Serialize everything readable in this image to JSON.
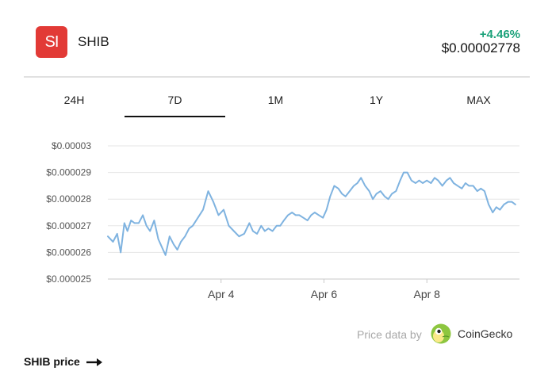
{
  "coin": {
    "logo_text": "SI",
    "name": "SHIB",
    "change": "+4.46%",
    "price": "$0.00002778",
    "colors": {
      "logo_bg": "#e23a36",
      "change": "#1aa179",
      "line": "#7fb3e0"
    }
  },
  "tabs": [
    {
      "label": "24H",
      "active": false
    },
    {
      "label": "7D",
      "active": true
    },
    {
      "label": "1M",
      "active": false
    },
    {
      "label": "1Y",
      "active": false
    },
    {
      "label": "MAX",
      "active": false
    }
  ],
  "chart_data": {
    "type": "line",
    "title": "",
    "xlabel": "",
    "ylabel": "",
    "ytick_labels": [
      "$0.000025",
      "$0.000026",
      "$0.000027",
      "$0.000028",
      "$0.000029",
      "$0.00003"
    ],
    "yticks": [
      2.5e-05,
      2.6e-05,
      2.7e-05,
      2.8e-05,
      2.9e-05,
      3e-05
    ],
    "ylim": [
      2.5e-05,
      3e-05
    ],
    "xtick_labels": [
      "Apr 4",
      "Apr 6",
      "Apr 8"
    ],
    "xticks": [
      1,
      3,
      5
    ],
    "xlim": [
      -1.2,
      6.8
    ],
    "grid": true,
    "series": [
      {
        "x": [
          -1.2,
          -1.1,
          -1.02,
          -0.95,
          -0.88,
          -0.82,
          -0.75,
          -0.68,
          -0.6,
          -0.52,
          -0.45,
          -0.38,
          -0.3,
          -0.22,
          -0.15,
          -0.08,
          0,
          0.08,
          0.15,
          0.22,
          0.3,
          0.38,
          0.45,
          0.55,
          0.65,
          0.75,
          0.85,
          0.95,
          1.05,
          1.15,
          1.25,
          1.35,
          1.45,
          1.55,
          1.62,
          1.7,
          1.78,
          1.85,
          1.92,
          2,
          2.08,
          2.15,
          2.22,
          2.3,
          2.38,
          2.45,
          2.52,
          2.6,
          2.68,
          2.75,
          2.82,
          2.9,
          2.98,
          3.05,
          3.12,
          3.2,
          3.28,
          3.35,
          3.42,
          3.5,
          3.58,
          3.65,
          3.72,
          3.8,
          3.88,
          3.95,
          4.02,
          4.1,
          4.18,
          4.25,
          4.32,
          4.4,
          4.48,
          4.55,
          4.62,
          4.7,
          4.78,
          4.85,
          4.92,
          5,
          5.08,
          5.15,
          5.22,
          5.3,
          5.38,
          5.45,
          5.52,
          5.6,
          5.68,
          5.75,
          5.82,
          5.9,
          5.98,
          6.05,
          6.12,
          6.2,
          6.28,
          6.35,
          6.42,
          6.5,
          6.58,
          6.65,
          6.72
        ],
        "values": [
          2.66e-05,
          2.64e-05,
          2.67e-05,
          2.6e-05,
          2.71e-05,
          2.68e-05,
          2.72e-05,
          2.71e-05,
          2.71e-05,
          2.74e-05,
          2.7e-05,
          2.68e-05,
          2.72e-05,
          2.65e-05,
          2.62e-05,
          2.59e-05,
          2.66e-05,
          2.63e-05,
          2.61e-05,
          2.64e-05,
          2.66e-05,
          2.69e-05,
          2.7e-05,
          2.73e-05,
          2.76e-05,
          2.83e-05,
          2.79e-05,
          2.74e-05,
          2.76e-05,
          2.7e-05,
          2.68e-05,
          2.66e-05,
          2.67e-05,
          2.71e-05,
          2.68e-05,
          2.67e-05,
          2.7e-05,
          2.68e-05,
          2.69e-05,
          2.68e-05,
          2.7e-05,
          2.7e-05,
          2.72e-05,
          2.74e-05,
          2.75e-05,
          2.74e-05,
          2.74e-05,
          2.73e-05,
          2.72e-05,
          2.74e-05,
          2.75e-05,
          2.74e-05,
          2.73e-05,
          2.76e-05,
          2.81e-05,
          2.85e-05,
          2.84e-05,
          2.82e-05,
          2.81e-05,
          2.83e-05,
          2.85e-05,
          2.86e-05,
          2.88e-05,
          2.85e-05,
          2.83e-05,
          2.8e-05,
          2.82e-05,
          2.83e-05,
          2.81e-05,
          2.8e-05,
          2.82e-05,
          2.83e-05,
          2.87e-05,
          2.9e-05,
          2.9e-05,
          2.87e-05,
          2.86e-05,
          2.87e-05,
          2.86e-05,
          2.87e-05,
          2.86e-05,
          2.88e-05,
          2.87e-05,
          2.85e-05,
          2.87e-05,
          2.88e-05,
          2.86e-05,
          2.85e-05,
          2.84e-05,
          2.86e-05,
          2.85e-05,
          2.85e-05,
          2.83e-05,
          2.84e-05,
          2.83e-05,
          2.78e-05,
          2.75e-05,
          2.77e-05,
          2.76e-05,
          2.78e-05,
          2.79e-05,
          2.79e-05,
          2.78e-05
        ]
      }
    ]
  },
  "credit": {
    "label": "Price data by",
    "brand": "CoinGecko"
  },
  "footer": {
    "link_label": "SHIB price"
  }
}
